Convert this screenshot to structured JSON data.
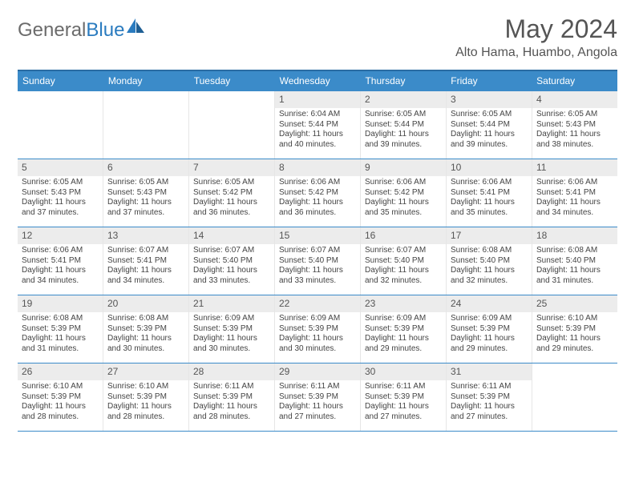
{
  "logo": {
    "text1": "General",
    "text2": "Blue"
  },
  "title": "May 2024",
  "location": "Alto Hama, Huambo, Angola",
  "colors": {
    "header_bg": "#3b8bc9",
    "header_border": "#2a6ca3",
    "row_border": "#3b8bc9",
    "daynum_bg": "#ececec",
    "text": "#555555",
    "logo_gray": "#6b6b6b",
    "logo_blue": "#2a7bbf"
  },
  "days_of_week": [
    "Sunday",
    "Monday",
    "Tuesday",
    "Wednesday",
    "Thursday",
    "Friday",
    "Saturday"
  ],
  "weeks": [
    [
      {
        "n": "",
        "empty": true
      },
      {
        "n": "",
        "empty": true
      },
      {
        "n": "",
        "empty": true
      },
      {
        "n": "1",
        "sr": "6:04 AM",
        "ss": "5:44 PM",
        "dl": "11 hours and 40 minutes."
      },
      {
        "n": "2",
        "sr": "6:05 AM",
        "ss": "5:44 PM",
        "dl": "11 hours and 39 minutes."
      },
      {
        "n": "3",
        "sr": "6:05 AM",
        "ss": "5:44 PM",
        "dl": "11 hours and 39 minutes."
      },
      {
        "n": "4",
        "sr": "6:05 AM",
        "ss": "5:43 PM",
        "dl": "11 hours and 38 minutes."
      }
    ],
    [
      {
        "n": "5",
        "sr": "6:05 AM",
        "ss": "5:43 PM",
        "dl": "11 hours and 37 minutes."
      },
      {
        "n": "6",
        "sr": "6:05 AM",
        "ss": "5:43 PM",
        "dl": "11 hours and 37 minutes."
      },
      {
        "n": "7",
        "sr": "6:05 AM",
        "ss": "5:42 PM",
        "dl": "11 hours and 36 minutes."
      },
      {
        "n": "8",
        "sr": "6:06 AM",
        "ss": "5:42 PM",
        "dl": "11 hours and 36 minutes."
      },
      {
        "n": "9",
        "sr": "6:06 AM",
        "ss": "5:42 PM",
        "dl": "11 hours and 35 minutes."
      },
      {
        "n": "10",
        "sr": "6:06 AM",
        "ss": "5:41 PM",
        "dl": "11 hours and 35 minutes."
      },
      {
        "n": "11",
        "sr": "6:06 AM",
        "ss": "5:41 PM",
        "dl": "11 hours and 34 minutes."
      }
    ],
    [
      {
        "n": "12",
        "sr": "6:06 AM",
        "ss": "5:41 PM",
        "dl": "11 hours and 34 minutes."
      },
      {
        "n": "13",
        "sr": "6:07 AM",
        "ss": "5:41 PM",
        "dl": "11 hours and 34 minutes."
      },
      {
        "n": "14",
        "sr": "6:07 AM",
        "ss": "5:40 PM",
        "dl": "11 hours and 33 minutes."
      },
      {
        "n": "15",
        "sr": "6:07 AM",
        "ss": "5:40 PM",
        "dl": "11 hours and 33 minutes."
      },
      {
        "n": "16",
        "sr": "6:07 AM",
        "ss": "5:40 PM",
        "dl": "11 hours and 32 minutes."
      },
      {
        "n": "17",
        "sr": "6:08 AM",
        "ss": "5:40 PM",
        "dl": "11 hours and 32 minutes."
      },
      {
        "n": "18",
        "sr": "6:08 AM",
        "ss": "5:40 PM",
        "dl": "11 hours and 31 minutes."
      }
    ],
    [
      {
        "n": "19",
        "sr": "6:08 AM",
        "ss": "5:39 PM",
        "dl": "11 hours and 31 minutes."
      },
      {
        "n": "20",
        "sr": "6:08 AM",
        "ss": "5:39 PM",
        "dl": "11 hours and 30 minutes."
      },
      {
        "n": "21",
        "sr": "6:09 AM",
        "ss": "5:39 PM",
        "dl": "11 hours and 30 minutes."
      },
      {
        "n": "22",
        "sr": "6:09 AM",
        "ss": "5:39 PM",
        "dl": "11 hours and 30 minutes."
      },
      {
        "n": "23",
        "sr": "6:09 AM",
        "ss": "5:39 PM",
        "dl": "11 hours and 29 minutes."
      },
      {
        "n": "24",
        "sr": "6:09 AM",
        "ss": "5:39 PM",
        "dl": "11 hours and 29 minutes."
      },
      {
        "n": "25",
        "sr": "6:10 AM",
        "ss": "5:39 PM",
        "dl": "11 hours and 29 minutes."
      }
    ],
    [
      {
        "n": "26",
        "sr": "6:10 AM",
        "ss": "5:39 PM",
        "dl": "11 hours and 28 minutes."
      },
      {
        "n": "27",
        "sr": "6:10 AM",
        "ss": "5:39 PM",
        "dl": "11 hours and 28 minutes."
      },
      {
        "n": "28",
        "sr": "6:11 AM",
        "ss": "5:39 PM",
        "dl": "11 hours and 28 minutes."
      },
      {
        "n": "29",
        "sr": "6:11 AM",
        "ss": "5:39 PM",
        "dl": "11 hours and 27 minutes."
      },
      {
        "n": "30",
        "sr": "6:11 AM",
        "ss": "5:39 PM",
        "dl": "11 hours and 27 minutes."
      },
      {
        "n": "31",
        "sr": "6:11 AM",
        "ss": "5:39 PM",
        "dl": "11 hours and 27 minutes."
      },
      {
        "n": "",
        "empty": true
      }
    ]
  ],
  "labels": {
    "sunrise": "Sunrise:",
    "sunset": "Sunset:",
    "daylight": "Daylight:"
  }
}
